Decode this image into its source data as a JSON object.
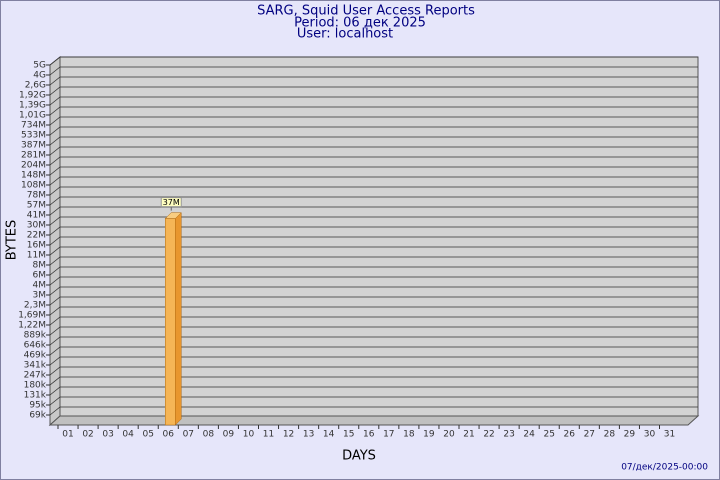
{
  "chart_data": {
    "type": "bar",
    "title": "SARG, Squid User Access Reports",
    "subtitle": "Period: 06 дек 2025",
    "user": "User: localhost",
    "x_label": "DAYS",
    "y_label": "BYTES",
    "footer": "07/дек/2025-00:00",
    "categories": [
      "01",
      "02",
      "03",
      "04",
      "05",
      "06",
      "07",
      "08",
      "09",
      "10",
      "11",
      "12",
      "13",
      "14",
      "15",
      "16",
      "17",
      "18",
      "19",
      "20",
      "21",
      "22",
      "23",
      "24",
      "25",
      "26",
      "27",
      "28",
      "29",
      "30",
      "31"
    ],
    "values": [
      null,
      null,
      null,
      null,
      null,
      37000000,
      null,
      null,
      null,
      null,
      null,
      null,
      null,
      null,
      null,
      null,
      null,
      null,
      null,
      null,
      null,
      null,
      null,
      null,
      null,
      null,
      null,
      null,
      null,
      null,
      null
    ],
    "value_labels": [
      null,
      null,
      null,
      null,
      null,
      "37M",
      null,
      null,
      null,
      null,
      null,
      null,
      null,
      null,
      null,
      null,
      null,
      null,
      null,
      null,
      null,
      null,
      null,
      null,
      null,
      null,
      null,
      null,
      null,
      null,
      null
    ],
    "color": "#f5b556",
    "ylim": [
      0,
      5000000000
    ],
    "yticks": [
      {
        "value": 5000000000,
        "label": "5G"
      },
      {
        "value": 4000000000,
        "label": "4G"
      },
      {
        "value": 2600000000,
        "label": "2,6G"
      },
      {
        "value": 1920000000,
        "label": "1,92G"
      },
      {
        "value": 1390000000,
        "label": "1,39G"
      },
      {
        "value": 1010000000,
        "label": "1,01G"
      },
      {
        "value": 734000000,
        "label": "734M"
      },
      {
        "value": 533000000,
        "label": "533M"
      },
      {
        "value": 387000000,
        "label": "387M"
      },
      {
        "value": 281000000,
        "label": "281M"
      },
      {
        "value": 204000000,
        "label": "204M"
      },
      {
        "value": 148000000,
        "label": "148M"
      },
      {
        "value": 108000000,
        "label": "108M"
      },
      {
        "value": 78000000,
        "label": "78M"
      },
      {
        "value": 57000000,
        "label": "57M"
      },
      {
        "value": 41000000,
        "label": "41M"
      },
      {
        "value": 30000000,
        "label": "30M"
      },
      {
        "value": 22000000,
        "label": "22M"
      },
      {
        "value": 16000000,
        "label": "16M"
      },
      {
        "value": 11000000,
        "label": "11M"
      },
      {
        "value": 8000000,
        "label": "8M"
      },
      {
        "value": 6000000,
        "label": "6M"
      },
      {
        "value": 4000000,
        "label": "4M"
      },
      {
        "value": 3000000,
        "label": "3M"
      },
      {
        "value": 2300000,
        "label": "2,3M"
      },
      {
        "value": 1690000,
        "label": "1,69M"
      },
      {
        "value": 1220000,
        "label": "1,22M"
      },
      {
        "value": 889000,
        "label": "889k"
      },
      {
        "value": 646000,
        "label": "646k"
      },
      {
        "value": 469000,
        "label": "469k"
      },
      {
        "value": 341000,
        "label": "341k"
      },
      {
        "value": 247000,
        "label": "247k"
      },
      {
        "value": 180000,
        "label": "180k"
      },
      {
        "value": 131000,
        "label": "131k"
      },
      {
        "value": 95000,
        "label": "95k"
      },
      {
        "value": 69000,
        "label": "69k"
      }
    ],
    "grid": true
  }
}
